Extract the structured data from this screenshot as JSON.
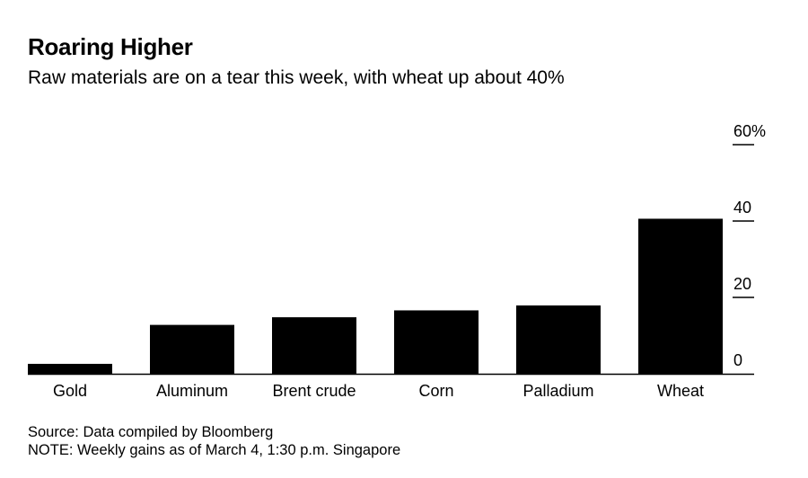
{
  "chart_data": {
    "type": "bar",
    "title": "Roaring Higher",
    "subtitle": "Raw materials are on a tear this week, with wheat up about 40%",
    "categories": [
      "Gold",
      "Aluminum",
      "Brent crude",
      "Corn",
      "Palladium",
      "Wheat"
    ],
    "values": [
      2.6,
      12.8,
      14.8,
      16.6,
      17.9,
      40.6
    ],
    "xlabel": "",
    "ylabel": "",
    "ylim": [
      0,
      60
    ],
    "y_ticks": [
      {
        "value": 0,
        "label": "0"
      },
      {
        "value": 20,
        "label": "20"
      },
      {
        "value": 40,
        "label": "40"
      },
      {
        "value": 60,
        "label": "60%"
      }
    ],
    "grid": false,
    "legend": "none",
    "colors": {
      "bar": "#000000",
      "text": "#000000",
      "axis": "#000000",
      "background": "#ffffff"
    }
  },
  "source": "Source: Data compiled by Bloomberg",
  "note": "NOTE: Weekly gains as of March 4, 1:30 p.m. Singapore"
}
